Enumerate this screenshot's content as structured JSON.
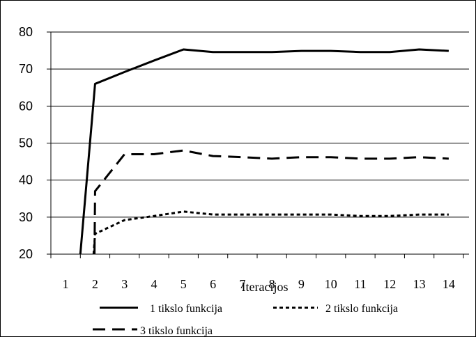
{
  "chart_data": {
    "type": "line",
    "xlabel": "Iteracijos",
    "ylabel": "",
    "title": "",
    "categories": [
      "1",
      "2",
      "3",
      "4",
      "5",
      "6",
      "7",
      "8",
      "9",
      "10",
      "11",
      "12",
      "13",
      "14"
    ],
    "ylim": [
      20,
      80
    ],
    "yticks": [
      20,
      30,
      40,
      50,
      60,
      70,
      80
    ],
    "grid": true,
    "legend_position": "bottom",
    "series": [
      {
        "name": "1 tikslo funkcija",
        "dash": "solid",
        "values": [
          null,
          66,
          69.2,
          72.3,
          75.3,
          74.6,
          74.6,
          74.6,
          74.9,
          74.9,
          74.6,
          74.6,
          75.3,
          74.9
        ],
        "entry_from": {
          "x": 1.5,
          "y": 20
        }
      },
      {
        "name": "2 tikslo funkcija",
        "dash": "dotted",
        "values": [
          null,
          25.5,
          29.2,
          30.3,
          31.5,
          30.7,
          30.7,
          30.7,
          30.7,
          30.7,
          30.3,
          30.3,
          30.7,
          30.7
        ],
        "entry_from": {
          "x": 1.95,
          "y": 20
        }
      },
      {
        "name": "3 tikslo funkcija",
        "dash": "dashed",
        "values": [
          null,
          37,
          47,
          47,
          48,
          46.5,
          46.2,
          45.8,
          46.2,
          46.2,
          45.8,
          45.8,
          46.2,
          45.8
        ],
        "entry_from": {
          "x": 1.98,
          "y": 20
        }
      }
    ],
    "line_color": "#000000",
    "grid_color": "#000000"
  }
}
